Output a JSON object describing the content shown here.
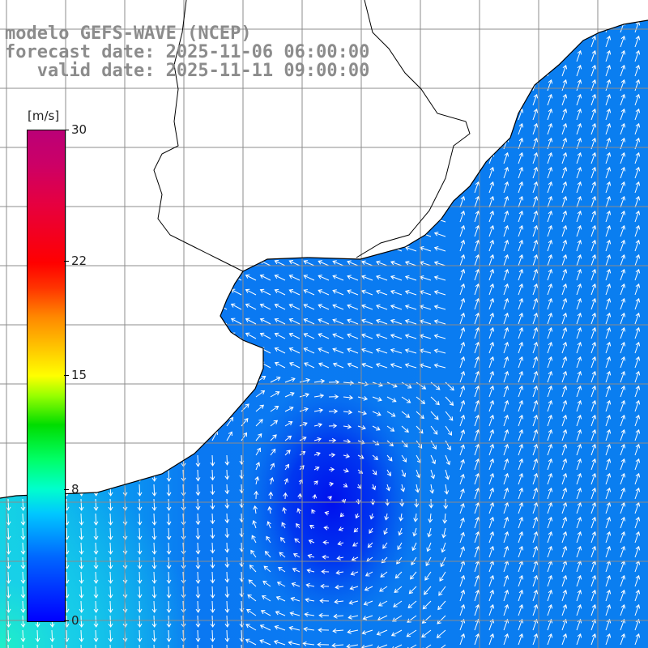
{
  "title": {
    "line1": "modelo GEFS-WAVE (NCEP)",
    "line2": "forecast date: 2025-11-06 06:00:00",
    "line3": "   valid date: 2025-11-11 09:00:00"
  },
  "colorbar": {
    "units": "[m/s]",
    "min": 0,
    "max": 30,
    "ticks": [
      {
        "label": "30",
        "value": 30
      },
      {
        "label": "22",
        "value": 22
      },
      {
        "label": "15",
        "value": 15
      },
      {
        "label": "8",
        "value": 8
      },
      {
        "label": "0",
        "value": 0
      }
    ]
  },
  "colors": {
    "land": "#ffffff",
    "grid": "#8c8c8c",
    "arrow": "#ffffff",
    "coast": "#000000"
  }
}
